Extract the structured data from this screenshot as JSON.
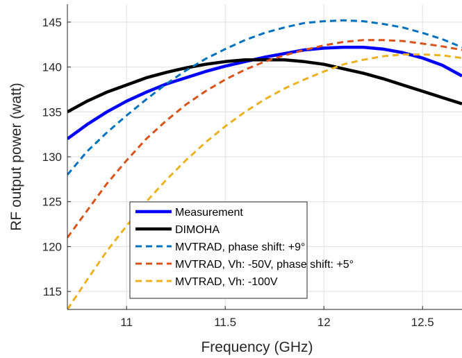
{
  "chart_data": {
    "type": "line",
    "title": "",
    "xlabel": "Frequency (GHz)",
    "ylabel": "RF output power (watt)",
    "xlim": [
      10.7,
      12.7
    ],
    "ylim": [
      113,
      147
    ],
    "x_ticks": [
      11,
      11.5,
      12,
      12.5
    ],
    "x_tick_labels": [
      "11",
      "11.5",
      "12",
      "12.5"
    ],
    "y_ticks": [
      115,
      120,
      125,
      130,
      135,
      140,
      145
    ],
    "y_tick_labels": [
      "115",
      "120",
      "125",
      "130",
      "135",
      "140",
      "145"
    ],
    "grid": true,
    "legend_position": "bottom-center",
    "series": [
      {
        "name": "Measurement",
        "color": "#0000ff",
        "style": "solid",
        "width": "thick",
        "x": [
          10.7,
          10.8,
          10.9,
          11.0,
          11.1,
          11.2,
          11.3,
          11.4,
          11.5,
          11.6,
          11.7,
          11.8,
          11.9,
          12.0,
          12.1,
          12.2,
          12.3,
          12.4,
          12.5,
          12.6,
          12.7
        ],
        "y": [
          132.0,
          133.6,
          135.0,
          136.2,
          137.2,
          138.1,
          138.8,
          139.5,
          140.1,
          140.6,
          141.1,
          141.5,
          141.9,
          142.1,
          142.2,
          142.2,
          142.0,
          141.6,
          141.0,
          140.2,
          139.0
        ]
      },
      {
        "name": "DIMOHA",
        "color": "#000000",
        "style": "solid",
        "width": "thick",
        "x": [
          10.7,
          10.8,
          10.9,
          11.0,
          11.1,
          11.2,
          11.3,
          11.4,
          11.5,
          11.6,
          11.7,
          11.8,
          11.9,
          12.0,
          12.1,
          12.2,
          12.3,
          12.4,
          12.5,
          12.6,
          12.7
        ],
        "y": [
          135.0,
          136.2,
          137.2,
          138.0,
          138.8,
          139.4,
          139.9,
          140.3,
          140.6,
          140.8,
          140.8,
          140.8,
          140.6,
          140.3,
          139.8,
          139.3,
          138.7,
          138.0,
          137.3,
          136.6,
          135.9
        ]
      },
      {
        "name": "MVTRAD, phase shift: +9°",
        "color": "#0072bd",
        "style": "dashed",
        "width": "normal",
        "x": [
          10.7,
          10.8,
          10.9,
          11.0,
          11.1,
          11.2,
          11.3,
          11.4,
          11.5,
          11.6,
          11.7,
          11.8,
          11.9,
          12.0,
          12.1,
          12.2,
          12.3,
          12.4,
          12.5,
          12.6,
          12.7
        ],
        "y": [
          128.0,
          130.6,
          132.7,
          134.6,
          136.4,
          138.1,
          139.6,
          140.9,
          142.0,
          143.0,
          143.8,
          144.4,
          144.9,
          145.1,
          145.2,
          145.1,
          144.8,
          144.4,
          143.8,
          143.1,
          142.2
        ]
      },
      {
        "name": "MVTRAD, Vh: -50V, phase shift: +5°",
        "color": "#d95319",
        "style": "dashed",
        "width": "normal",
        "x": [
          10.7,
          10.8,
          10.9,
          11.0,
          11.1,
          11.2,
          11.3,
          11.4,
          11.5,
          11.6,
          11.7,
          11.8,
          11.9,
          12.0,
          12.1,
          12.2,
          12.3,
          12.4,
          12.5,
          12.6,
          12.7
        ],
        "y": [
          121.0,
          124.0,
          127.0,
          129.6,
          132.0,
          134.0,
          135.8,
          137.3,
          138.6,
          139.7,
          140.6,
          141.3,
          141.9,
          142.4,
          142.8,
          143.0,
          143.0,
          142.9,
          142.6,
          142.3,
          141.9
        ]
      },
      {
        "name": "MVTRAD, Vh: -100V",
        "color": "#edb120",
        "style": "dashed",
        "width": "normal",
        "x": [
          10.7,
          10.8,
          10.9,
          11.0,
          11.1,
          11.2,
          11.3,
          11.4,
          11.5,
          11.6,
          11.7,
          11.8,
          11.9,
          12.0,
          12.1,
          12.2,
          12.3,
          12.4,
          12.5,
          12.6,
          12.7
        ],
        "y": [
          113.0,
          116.3,
          119.5,
          122.3,
          125.0,
          127.4,
          129.6,
          131.6,
          133.4,
          135.0,
          136.4,
          137.6,
          138.6,
          139.5,
          140.3,
          140.8,
          141.2,
          141.4,
          141.4,
          141.3,
          141.0
        ]
      }
    ]
  }
}
